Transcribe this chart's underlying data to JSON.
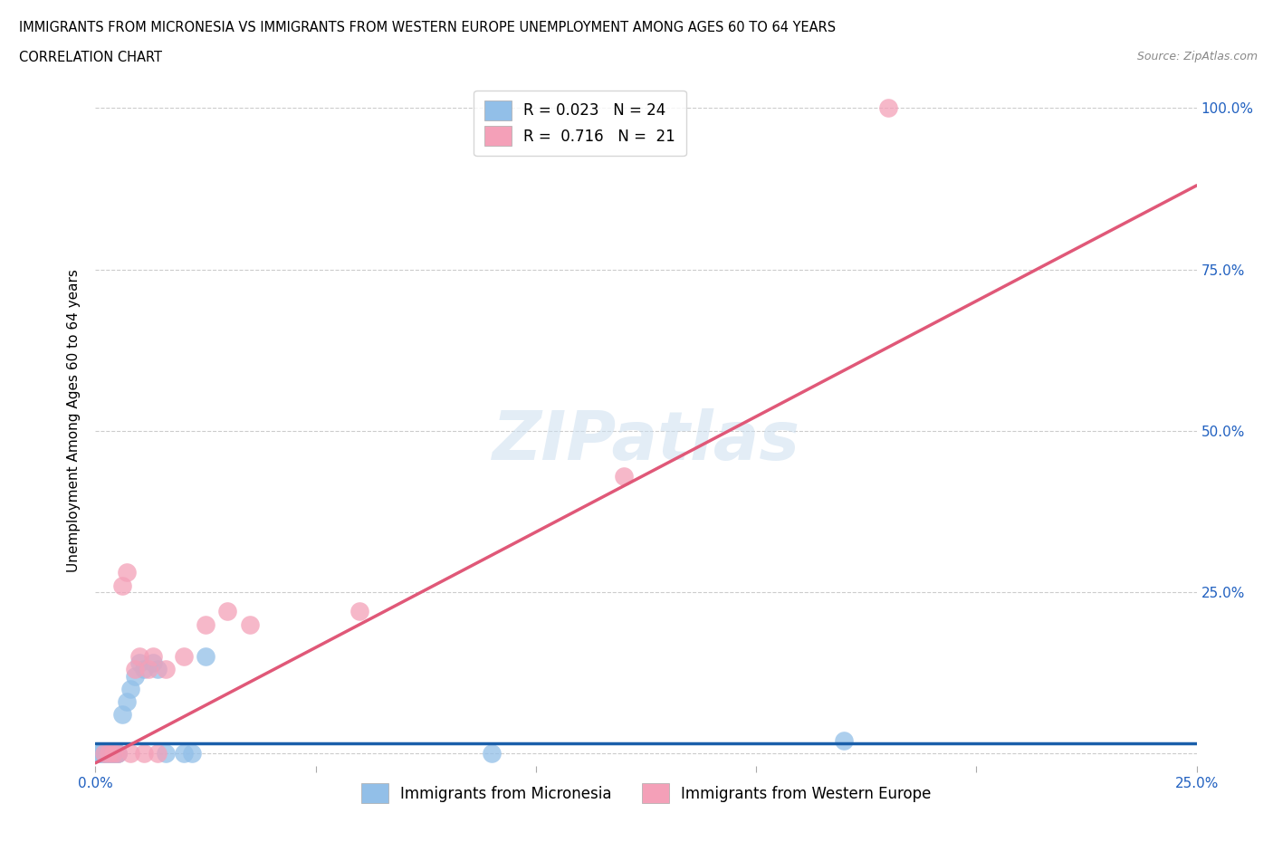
{
  "title_line1": "IMMIGRANTS FROM MICRONESIA VS IMMIGRANTS FROM WESTERN EUROPE UNEMPLOYMENT AMONG AGES 60 TO 64 YEARS",
  "title_line2": "CORRELATION CHART",
  "source_text": "Source: ZipAtlas.com",
  "ylabel": "Unemployment Among Ages 60 to 64 years",
  "x_series_label": "Immigrants from Micronesia",
  "y_series_label": "Immigrants from Western Europe",
  "xlim": [
    0.0,
    0.25
  ],
  "ylim": [
    -0.02,
    1.05
  ],
  "xtick_positions": [
    0.0,
    0.05,
    0.1,
    0.15,
    0.2,
    0.25
  ],
  "xticklabels": [
    "0.0%",
    "",
    "",
    "",
    "",
    "25.0%"
  ],
  "ytick_positions": [
    0.0,
    0.25,
    0.5,
    0.75,
    1.0
  ],
  "yticklabels_right": [
    "",
    "25.0%",
    "50.0%",
    "75.0%",
    "100.0%"
  ],
  "R_micronesia": 0.023,
  "N_micronesia": 24,
  "R_western_europe": 0.716,
  "N_western_europe": 21,
  "color_micronesia": "#92bfe8",
  "color_western_europe": "#f4a0b8",
  "trendline_color_micronesia": "#1a5faa",
  "trendline_color_western_europe": "#e05878",
  "micronesia_x": [
    0.001,
    0.001,
    0.002,
    0.002,
    0.003,
    0.003,
    0.004,
    0.004,
    0.005,
    0.005,
    0.006,
    0.007,
    0.008,
    0.009,
    0.01,
    0.011,
    0.013,
    0.014,
    0.016,
    0.02,
    0.022,
    0.025,
    0.09,
    0.17
  ],
  "micronesia_y": [
    0.0,
    0.0,
    0.0,
    0.0,
    0.0,
    0.0,
    0.0,
    0.0,
    0.0,
    0.0,
    0.06,
    0.08,
    0.1,
    0.12,
    0.14,
    0.13,
    0.14,
    0.13,
    0.0,
    0.0,
    0.0,
    0.15,
    0.0,
    0.02
  ],
  "western_europe_x": [
    0.002,
    0.003,
    0.004,
    0.005,
    0.006,
    0.007,
    0.008,
    0.009,
    0.01,
    0.011,
    0.012,
    0.013,
    0.014,
    0.016,
    0.02,
    0.025,
    0.03,
    0.035,
    0.06,
    0.12,
    0.18
  ],
  "western_europe_y": [
    0.0,
    0.0,
    0.0,
    0.0,
    0.26,
    0.28,
    0.0,
    0.13,
    0.15,
    0.0,
    0.13,
    0.15,
    0.0,
    0.13,
    0.15,
    0.2,
    0.22,
    0.2,
    0.22,
    0.43,
    1.0
  ],
  "trendline_micronesia_x0": 0.0,
  "trendline_micronesia_y0": 0.015,
  "trendline_micronesia_x1": 0.25,
  "trendline_micronesia_y1": 0.015,
  "trendline_we_x0": 0.0,
  "trendline_we_y0": -0.015,
  "trendline_we_x1": 0.25,
  "trendline_we_y1": 0.88,
  "watermark": "ZIPatlas",
  "background_color": "#ffffff",
  "grid_color": "#cccccc",
  "title_fontsize": 10.5,
  "axis_label_fontsize": 11,
  "tick_fontsize": 11
}
